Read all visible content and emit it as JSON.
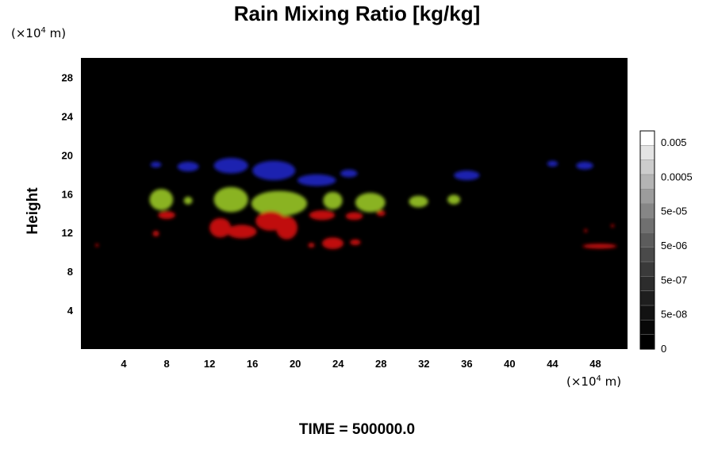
{
  "chart_data": {
    "type": "heatmap",
    "title": "Rain Mixing Ratio [kg/kg]",
    "ylabel": "Height",
    "x_unit": {
      "base": "(×10",
      "exp": "4",
      "tail": " m)"
    },
    "y_unit": {
      "base": "(×10",
      "exp": "4",
      "tail": " m)"
    },
    "xlim": [
      0,
      51
    ],
    "ylim": [
      0,
      30
    ],
    "x_ticks": [
      4,
      8,
      12,
      16,
      20,
      24,
      28,
      32,
      36,
      40,
      44,
      48
    ],
    "y_ticks": [
      4,
      8,
      12,
      16,
      20,
      24,
      28
    ],
    "background_color": "#000000",
    "colorbar": {
      "tick_labels": [
        "0.005",
        "0.0005",
        "5e-05",
        "5e-06",
        "5e-07",
        "5e-08",
        "0"
      ],
      "colors": [
        "#ffffff",
        "#e4e4e4",
        "#cccccc",
        "#b4b4b4",
        "#9c9c9c",
        "#868686",
        "#707070",
        "#5c5c5c",
        "#4a4a4a",
        "#3a3a3a",
        "#2c2c2c",
        "#1e1e1e",
        "#121212",
        "#080808",
        "#000000"
      ]
    },
    "features": [
      {
        "band": "upper",
        "color": "#1a20b0",
        "x": 7,
        "y": 19.0,
        "rx": 0.5,
        "ry": 0.3
      },
      {
        "band": "upper",
        "color": "#1a20b0",
        "x": 10,
        "y": 18.8,
        "rx": 1.0,
        "ry": 0.5
      },
      {
        "band": "upper",
        "color": "#1a20b0",
        "x": 14,
        "y": 18.9,
        "rx": 1.6,
        "ry": 0.8
      },
      {
        "band": "upper",
        "color": "#1a20b0",
        "x": 18,
        "y": 18.4,
        "rx": 2.0,
        "ry": 1.0
      },
      {
        "band": "upper",
        "color": "#1a20b0",
        "x": 22,
        "y": 17.4,
        "rx": 1.8,
        "ry": 0.6
      },
      {
        "band": "upper",
        "color": "#1a20b0",
        "x": 25,
        "y": 18.1,
        "rx": 0.8,
        "ry": 0.4
      },
      {
        "band": "upper",
        "color": "#1a20b0",
        "x": 36,
        "y": 17.9,
        "rx": 1.2,
        "ry": 0.5
      },
      {
        "band": "upper",
        "color": "#1a20b0",
        "x": 44,
        "y": 19.1,
        "rx": 0.5,
        "ry": 0.3
      },
      {
        "band": "upper",
        "color": "#1a20b0",
        "x": 47,
        "y": 18.9,
        "rx": 0.8,
        "ry": 0.4
      },
      {
        "band": "middle",
        "color": "#8ab322",
        "x": 7.5,
        "y": 15.4,
        "rx": 1.1,
        "ry": 1.1
      },
      {
        "band": "middle",
        "color": "#8ab322",
        "x": 10,
        "y": 15.3,
        "rx": 0.4,
        "ry": 0.4
      },
      {
        "band": "middle",
        "color": "#8ab322",
        "x": 14,
        "y": 15.4,
        "rx": 1.6,
        "ry": 1.3
      },
      {
        "band": "middle",
        "color": "#8ab322",
        "x": 18.5,
        "y": 15.0,
        "rx": 2.6,
        "ry": 1.3
      },
      {
        "band": "middle",
        "color": "#8ab322",
        "x": 23.5,
        "y": 15.3,
        "rx": 0.9,
        "ry": 0.9
      },
      {
        "band": "middle",
        "color": "#8ab322",
        "x": 27,
        "y": 15.1,
        "rx": 1.4,
        "ry": 1.0
      },
      {
        "band": "middle",
        "color": "#8ab322",
        "x": 31.5,
        "y": 15.2,
        "rx": 0.9,
        "ry": 0.6
      },
      {
        "band": "middle",
        "color": "#8ab322",
        "x": 34.8,
        "y": 15.4,
        "rx": 0.6,
        "ry": 0.5
      },
      {
        "band": "lower",
        "color": "#c01010",
        "x": 8,
        "y": 13.8,
        "rx": 0.8,
        "ry": 0.4
      },
      {
        "band": "lower",
        "color": "#c01010",
        "x": 7,
        "y": 11.9,
        "rx": 0.3,
        "ry": 0.3
      },
      {
        "band": "lower",
        "color": "#c01010",
        "x": 13,
        "y": 12.5,
        "rx": 1.0,
        "ry": 1.0
      },
      {
        "band": "lower",
        "color": "#c01010",
        "x": 15,
        "y": 12.1,
        "rx": 1.4,
        "ry": 0.7
      },
      {
        "band": "lower",
        "color": "#c01010",
        "x": 17.7,
        "y": 13.2,
        "rx": 1.4,
        "ry": 1.0
      },
      {
        "band": "lower",
        "color": "#c01010",
        "x": 19.2,
        "y": 12.5,
        "rx": 1.0,
        "ry": 1.2
      },
      {
        "band": "lower",
        "color": "#c01010",
        "x": 22.5,
        "y": 13.8,
        "rx": 1.2,
        "ry": 0.5
      },
      {
        "band": "lower",
        "color": "#c01010",
        "x": 25.5,
        "y": 13.7,
        "rx": 0.8,
        "ry": 0.4
      },
      {
        "band": "lower",
        "color": "#c01010",
        "x": 28,
        "y": 14.0,
        "rx": 0.4,
        "ry": 0.3
      },
      {
        "band": "lower",
        "color": "#c01010",
        "x": 23.5,
        "y": 10.9,
        "rx": 1.0,
        "ry": 0.6
      },
      {
        "band": "lower",
        "color": "#c01010",
        "x": 21.5,
        "y": 10.7,
        "rx": 0.3,
        "ry": 0.25
      },
      {
        "band": "lower",
        "color": "#c01010",
        "x": 25.6,
        "y": 11.0,
        "rx": 0.5,
        "ry": 0.3
      },
      {
        "band": "lower",
        "color": "#c01010",
        "x": 1.5,
        "y": 10.7,
        "rx": 0.15,
        "ry": 0.15
      },
      {
        "band": "lower",
        "color": "#c01010",
        "x": 47.1,
        "y": 12.2,
        "rx": 0.15,
        "ry": 0.15
      },
      {
        "band": "lower",
        "color": "#c01010",
        "x": 49.6,
        "y": 12.7,
        "rx": 0.15,
        "ry": 0.15
      },
      {
        "band": "lower",
        "color": "#c01010",
        "x": 48.4,
        "y": 10.6,
        "rx": 1.6,
        "ry": 0.25
      }
    ],
    "annotation": "TIME = 500000.0"
  }
}
